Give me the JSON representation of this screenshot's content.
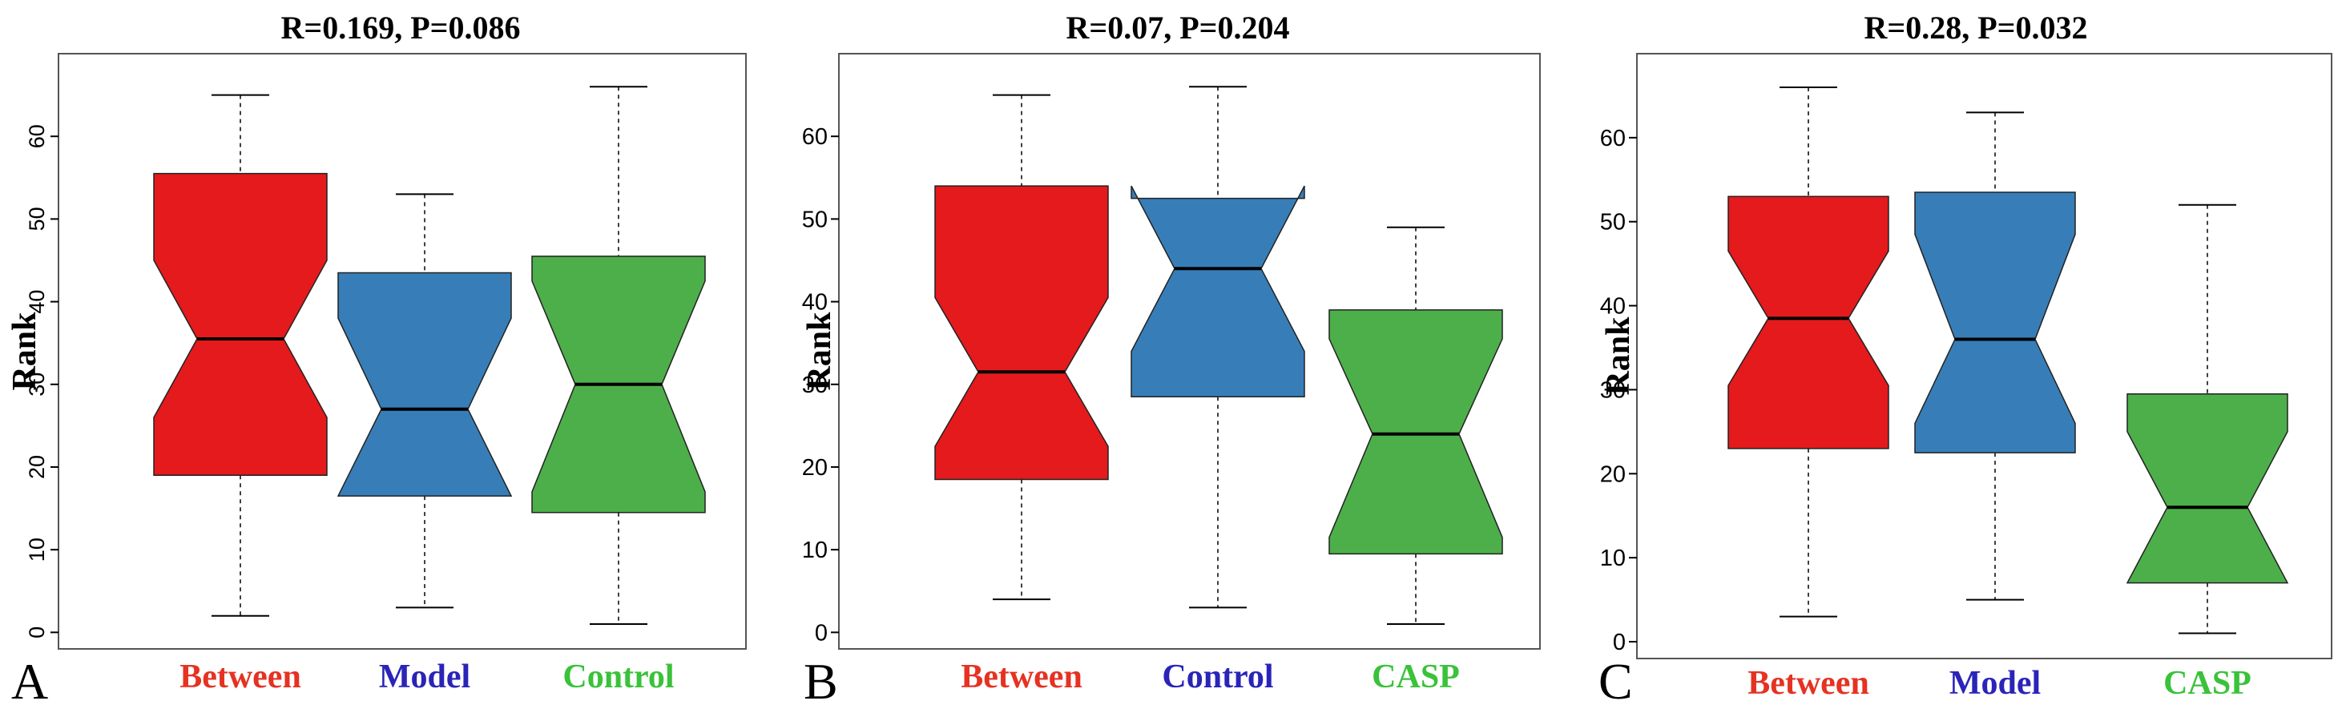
{
  "chart_data": [
    {
      "type": "boxplot",
      "panel_label": "A",
      "title": "R=0.169, P=0.086",
      "ylabel": "Rank",
      "xlabel": "",
      "ylim": [
        -2,
        70
      ],
      "yticks": [
        0,
        10,
        20,
        30,
        40,
        50,
        60
      ],
      "boxes": [
        {
          "category": "Between",
          "label_color": "#e53222",
          "fill": "#e41a1c",
          "whisker_low": 2,
          "q1": 19,
          "median": 35.5,
          "q3": 55.5,
          "whisker_high": 65,
          "notch_low": 26,
          "notch_high": 45
        },
        {
          "category": "Model",
          "label_color": "#2a24b8",
          "fill": "#377eb8",
          "whisker_low": 3,
          "q1": 16.5,
          "median": 27,
          "q3": 43.5,
          "whisker_high": 53,
          "notch_low": 16.5,
          "notch_high": 38
        },
        {
          "category": "Control",
          "label_color": "#3ac23a",
          "fill": "#4daf4a",
          "whisker_low": 1,
          "q1": 14.5,
          "median": 30,
          "q3": 45.5,
          "whisker_high": 66,
          "notch_low": 17,
          "notch_high": 42.5
        }
      ]
    },
    {
      "type": "boxplot",
      "panel_label": "B",
      "title": "R=0.07, P=0.204",
      "ylabel": "Rank",
      "xlabel": "",
      "ylim": [
        -2,
        70
      ],
      "yticks": [
        0,
        10,
        20,
        30,
        40,
        50,
        60
      ],
      "boxes": [
        {
          "category": "Between",
          "label_color": "#e53222",
          "fill": "#e41a1c",
          "whisker_low": 4,
          "q1": 18.5,
          "median": 31.5,
          "q3": 54,
          "whisker_high": 65,
          "notch_low": 22.5,
          "notch_high": 40.5
        },
        {
          "category": "Control",
          "label_color": "#2a24b8",
          "fill": "#377eb8",
          "whisker_low": 3,
          "q1": 28.5,
          "median": 44,
          "q3": 52.5,
          "whisker_high": 66,
          "notch_low": 34,
          "notch_high": 54
        },
        {
          "category": "CASP",
          "label_color": "#3ac23a",
          "fill": "#4daf4a",
          "whisker_low": 1,
          "q1": 9.5,
          "median": 24,
          "q3": 39,
          "whisker_high": 49,
          "notch_low": 11.5,
          "notch_high": 35.5
        }
      ]
    },
    {
      "type": "boxplot",
      "panel_label": "C",
      "title": "R=0.28, P=0.032",
      "ylabel": "Rank",
      "xlabel": "",
      "ylim": [
        -2,
        70
      ],
      "yticks": [
        0,
        10,
        20,
        30,
        40,
        50,
        60
      ],
      "boxes": [
        {
          "category": "Between",
          "label_color": "#e53222",
          "fill": "#e41a1c",
          "whisker_low": 3,
          "q1": 23,
          "median": 38.5,
          "q3": 53,
          "whisker_high": 66,
          "notch_low": 30.5,
          "notch_high": 46.5
        },
        {
          "category": "Model",
          "label_color": "#2a24b8",
          "fill": "#377eb8",
          "whisker_low": 5,
          "q1": 22.5,
          "median": 36,
          "q3": 53.5,
          "whisker_high": 63,
          "notch_low": 26,
          "notch_high": 48.5
        },
        {
          "category": "CASP",
          "label_color": "#3ac23a",
          "fill": "#4daf4a",
          "whisker_low": 1,
          "q1": 7,
          "median": 16,
          "q3": 29.5,
          "whisker_high": 52,
          "notch_low": 7,
          "notch_high": 25
        }
      ]
    }
  ]
}
